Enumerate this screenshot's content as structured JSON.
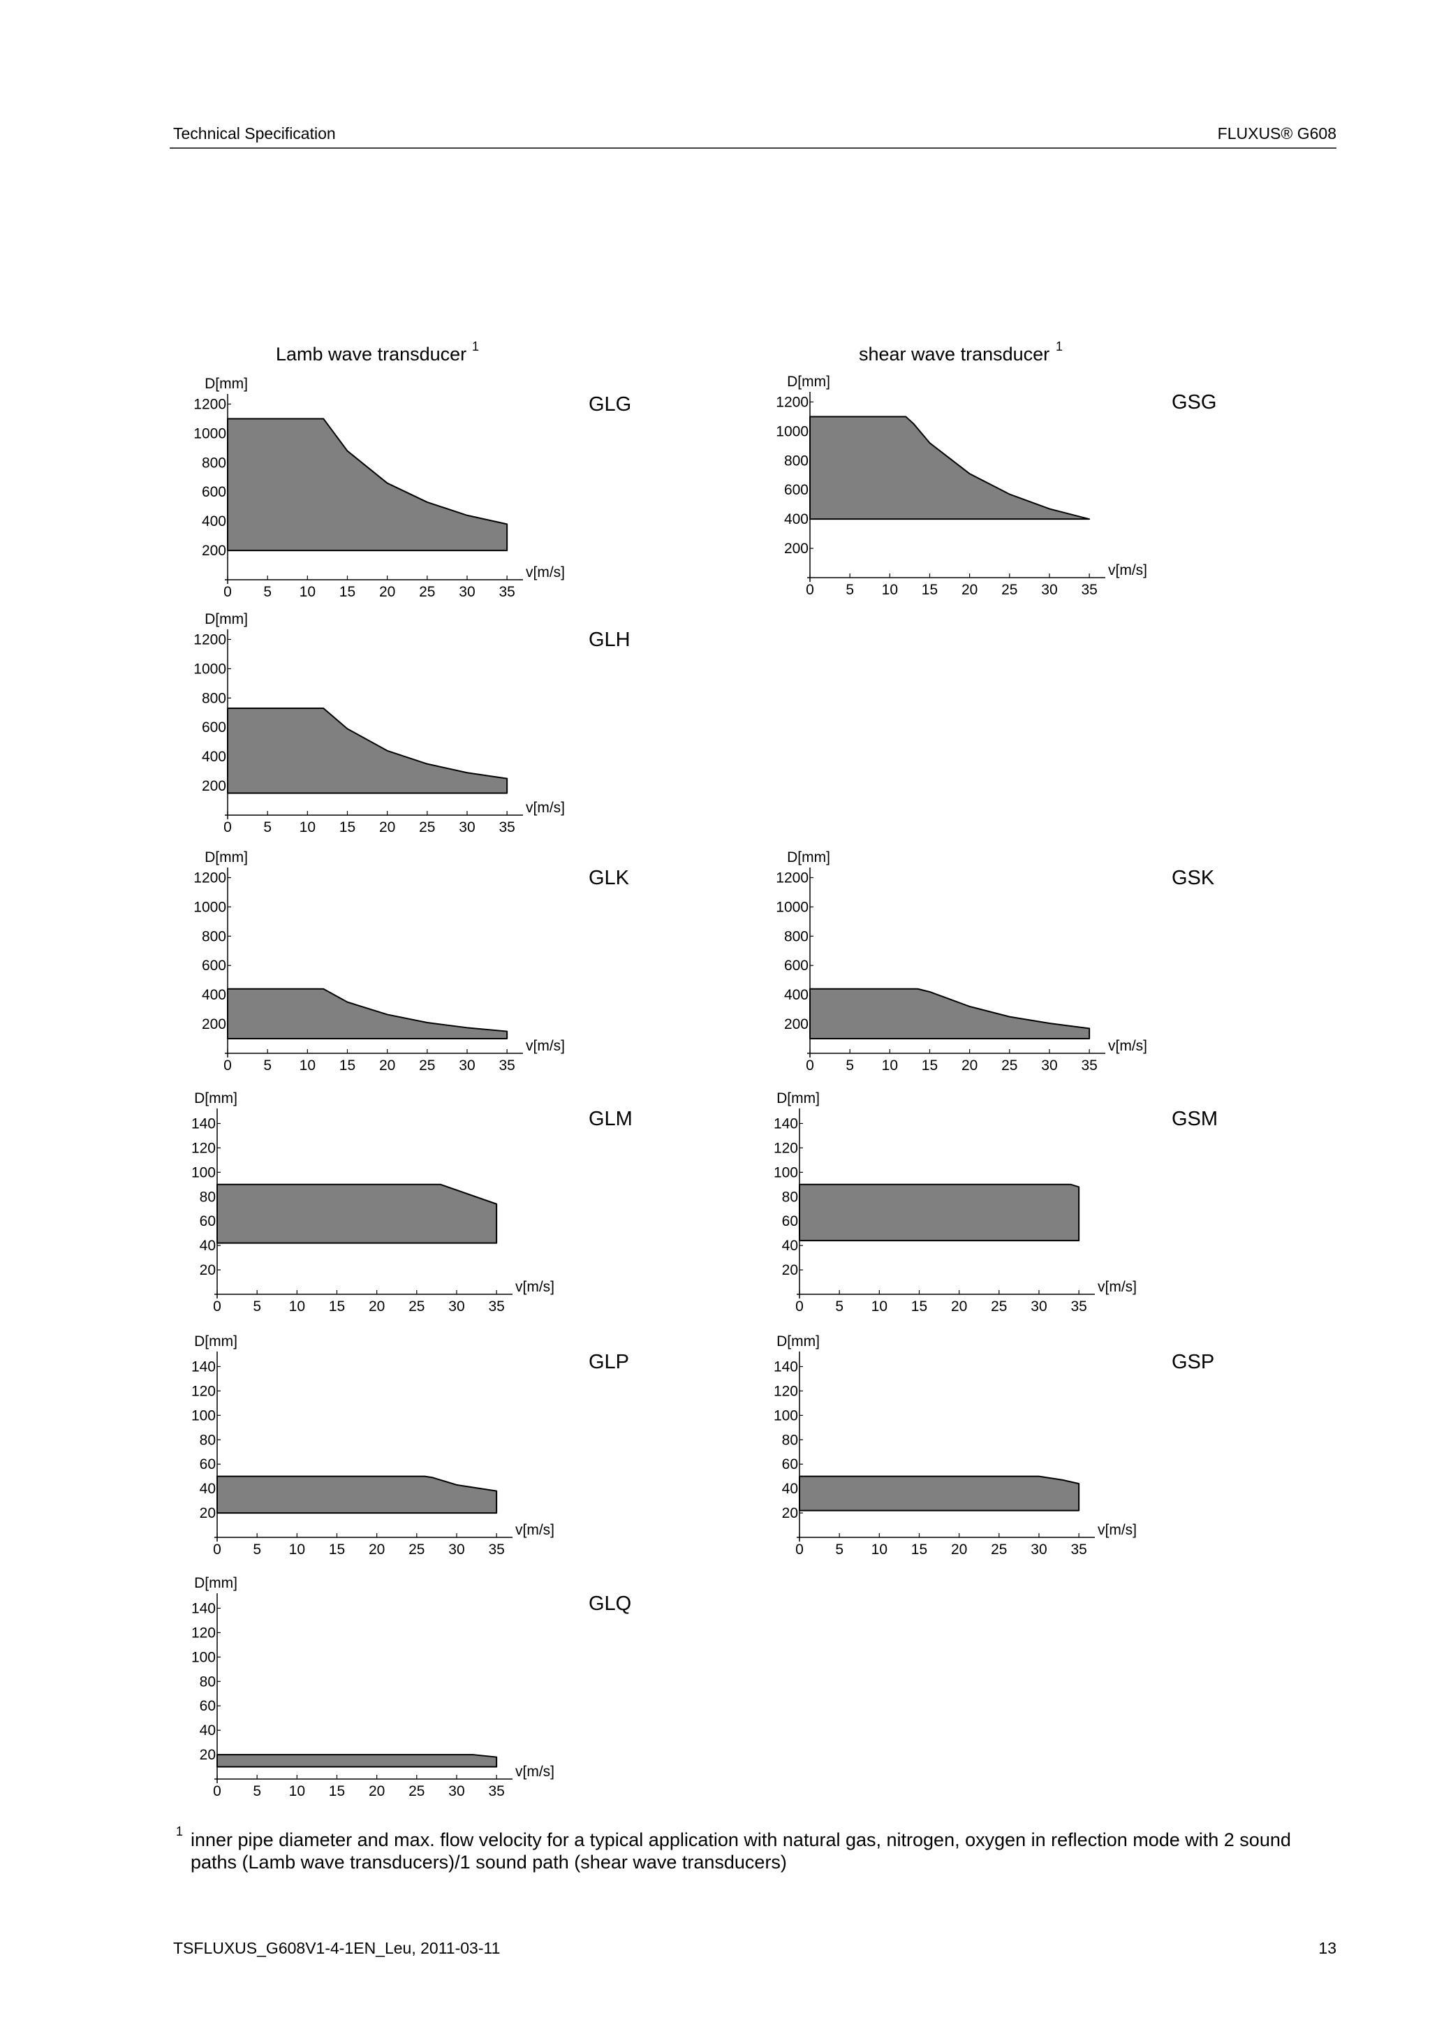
{
  "header": {
    "left": "Technical Specification",
    "right": "FLUXUS® G608"
  },
  "column_titles": [
    {
      "text": "Lamb wave transducer",
      "footnote_mark": "1"
    },
    {
      "text": "shear wave transducer",
      "footnote_mark": "1"
    }
  ],
  "chart_data": [
    {
      "type": "range-area",
      "label": "GLG",
      "y_label": "D[mm]",
      "x_label": "v[m/s]",
      "color": "#808080",
      "x": [
        0,
        12,
        15,
        20,
        25,
        30,
        35
      ],
      "upper": [
        1100,
        1100,
        880,
        660,
        530,
        440,
        380
      ],
      "lower": [
        200,
        200,
        200,
        200,
        200,
        200,
        200
      ],
      "xlim": [
        0,
        37
      ],
      "xticks": [
        0,
        5,
        10,
        15,
        20,
        25,
        30,
        35
      ],
      "ylim": [
        0,
        1250
      ],
      "yticks": [
        200,
        400,
        600,
        800,
        1000,
        1200
      ]
    },
    {
      "type": "range-area",
      "label": "GSG",
      "y_label": "D[mm]",
      "x_label": "v[m/s]",
      "color": "#808080",
      "x": [
        0,
        12,
        13,
        15,
        20,
        25,
        30,
        35
      ],
      "upper": [
        1100,
        1100,
        1050,
        920,
        710,
        570,
        470,
        400
      ],
      "lower": [
        400,
        400,
        400,
        400,
        400,
        400,
        400,
        400
      ],
      "xlim": [
        0,
        37
      ],
      "xticks": [
        0,
        5,
        10,
        15,
        20,
        25,
        30,
        35
      ],
      "ylim": [
        0,
        1250
      ],
      "yticks": [
        200,
        400,
        600,
        800,
        1000,
        1200
      ]
    },
    {
      "type": "range-area",
      "label": "GLH",
      "y_label": "D[mm]",
      "x_label": "v[m/s]",
      "color": "#808080",
      "x": [
        0,
        12,
        15,
        20,
        25,
        30,
        35
      ],
      "upper": [
        730,
        730,
        590,
        440,
        350,
        290,
        250
      ],
      "lower": [
        150,
        150,
        150,
        150,
        150,
        150,
        150
      ],
      "xlim": [
        0,
        37
      ],
      "xticks": [
        0,
        5,
        10,
        15,
        20,
        25,
        30,
        35
      ],
      "ylim": [
        0,
        1250
      ],
      "yticks": [
        200,
        400,
        600,
        800,
        1000,
        1200
      ]
    },
    {
      "type": "range-area",
      "label": "GLK",
      "y_label": "D[mm]",
      "x_label": "v[m/s]",
      "color": "#808080",
      "x": [
        0,
        12,
        15,
        20,
        25,
        30,
        35
      ],
      "upper": [
        440,
        440,
        350,
        265,
        210,
        175,
        150
      ],
      "lower": [
        100,
        100,
        100,
        100,
        100,
        100,
        100
      ],
      "xlim": [
        0,
        37
      ],
      "xticks": [
        0,
        5,
        10,
        15,
        20,
        25,
        30,
        35
      ],
      "ylim": [
        0,
        1250
      ],
      "yticks": [
        200,
        400,
        600,
        800,
        1000,
        1200
      ]
    },
    {
      "type": "range-area",
      "label": "GSK",
      "y_label": "D[mm]",
      "x_label": "v[m/s]",
      "color": "#808080",
      "x": [
        0,
        13.5,
        15,
        20,
        25,
        30,
        35
      ],
      "upper": [
        440,
        440,
        420,
        320,
        250,
        205,
        170
      ],
      "lower": [
        100,
        100,
        100,
        100,
        100,
        100,
        100
      ],
      "xlim": [
        0,
        37
      ],
      "xticks": [
        0,
        5,
        10,
        15,
        20,
        25,
        30,
        35
      ],
      "ylim": [
        0,
        1250
      ],
      "yticks": [
        200,
        400,
        600,
        800,
        1000,
        1200
      ]
    },
    {
      "type": "range-area",
      "label": "GLM",
      "y_label": "D[mm]",
      "x_label": "v[m/s]",
      "color": "#808080",
      "x": [
        0,
        28,
        35
      ],
      "upper": [
        90,
        90,
        74
      ],
      "lower": [
        42,
        42,
        42
      ],
      "xlim": [
        0,
        37
      ],
      "xticks": [
        0,
        5,
        10,
        15,
        20,
        25,
        30,
        35
      ],
      "ylim": [
        0,
        150
      ],
      "yticks": [
        20,
        40,
        60,
        80,
        100,
        120,
        140
      ]
    },
    {
      "type": "range-area",
      "label": "GSM",
      "y_label": "D[mm]",
      "x_label": "v[m/s]",
      "color": "#808080",
      "x": [
        0,
        34,
        35
      ],
      "upper": [
        90,
        90,
        88
      ],
      "lower": [
        44,
        44,
        44
      ],
      "xlim": [
        0,
        37
      ],
      "xticks": [
        0,
        5,
        10,
        15,
        20,
        25,
        30,
        35
      ],
      "ylim": [
        0,
        150
      ],
      "yticks": [
        20,
        40,
        60,
        80,
        100,
        120,
        140
      ]
    },
    {
      "type": "range-area",
      "label": "GLP",
      "y_label": "D[mm]",
      "x_label": "v[m/s]",
      "color": "#808080",
      "x": [
        0,
        26,
        27,
        30,
        35
      ],
      "upper": [
        50,
        50,
        49,
        43,
        38
      ],
      "lower": [
        20,
        20,
        20,
        20,
        20
      ],
      "xlim": [
        0,
        37
      ],
      "xticks": [
        0,
        5,
        10,
        15,
        20,
        25,
        30,
        35
      ],
      "ylim": [
        0,
        150
      ],
      "yticks": [
        20,
        40,
        60,
        80,
        100,
        120,
        140
      ]
    },
    {
      "type": "range-area",
      "label": "GSP",
      "y_label": "D[mm]",
      "x_label": "v[m/s]",
      "color": "#808080",
      "x": [
        0,
        30,
        33,
        35
      ],
      "upper": [
        50,
        50,
        47,
        44
      ],
      "lower": [
        22,
        22,
        22,
        22
      ],
      "xlim": [
        0,
        37
      ],
      "xticks": [
        0,
        5,
        10,
        15,
        20,
        25,
        30,
        35
      ],
      "ylim": [
        0,
        150
      ],
      "yticks": [
        20,
        40,
        60,
        80,
        100,
        120,
        140
      ]
    },
    {
      "type": "range-area",
      "label": "GLQ",
      "y_label": "D[mm]",
      "x_label": "v[m/s]",
      "color": "#808080",
      "x": [
        0,
        32,
        35
      ],
      "upper": [
        20,
        20,
        18
      ],
      "lower": [
        10,
        10,
        10
      ],
      "xlim": [
        0,
        37
      ],
      "xticks": [
        0,
        5,
        10,
        15,
        20,
        25,
        30,
        35
      ],
      "ylim": [
        0,
        150
      ],
      "yticks": [
        20,
        40,
        60,
        80,
        100,
        120,
        140
      ]
    }
  ],
  "footnote": {
    "mark": "1",
    "lines": [
      "inner pipe diameter and max. flow velocity for a typical application with natural gas, nitrogen, oxygen in reflection mode with 2 sound",
      "paths (Lamb wave transducers)/1 sound path (shear wave transducers)"
    ]
  },
  "footer": {
    "left": "TSFLUXUS_G608V1-4-1EN_Leu, 2011-03-11",
    "page": "13"
  }
}
